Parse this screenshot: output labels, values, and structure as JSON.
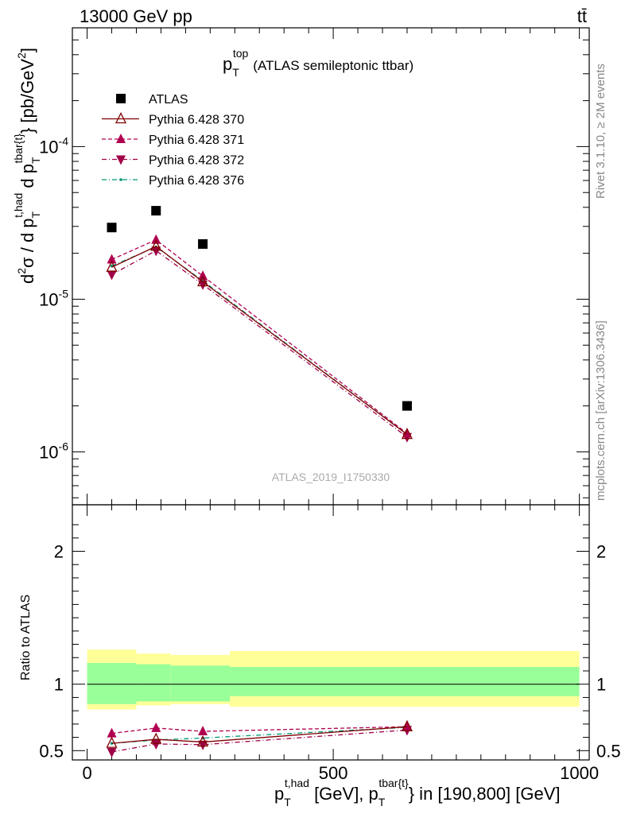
{
  "header": {
    "left": "13000 GeV pp",
    "right": "tt̄"
  },
  "side_texts": {
    "rivet": "Rivet 3.1.10, ≥ 2M events",
    "mcplots": "mcplots.cern.ch [arXiv:1306.3436]"
  },
  "watermark": "ATLAS_2019_I1750330",
  "colors": {
    "data": "#000000",
    "p370": "#7f0000",
    "p371": "#b00050",
    "p372": "#a00048",
    "p376": "#009977",
    "band_inner": "#99ff99",
    "band_outer": "#ffff99"
  },
  "chart_data": [
    {
      "type": "scatter",
      "title_main": "p",
      "title_sub": "T",
      "title_sup": "top",
      "title_rest": "(ATLAS semileptonic ttbar)",
      "ylabel": "d²σ / d p_T^{t,had} d p_T^{tbar{t}} [pb/GeV²]",
      "ylabel_parts": {
        "a": "d",
        "a_sup": "2",
        "b": "σ / d p",
        "b_sub": "T",
        "b_sup": "t,had",
        "c": " d p",
        "c_sub": "T",
        "c_sup": "tbar{t}",
        "d": "} [pb/GeV",
        "d_sup": "2",
        "e": "]"
      },
      "y_scale": "log",
      "ylim": [
        4.5e-07,
        0.0006
      ],
      "xlim": [
        -30,
        1020
      ],
      "y_tick_labels": [
        {
          "base": "10",
          "exp": "-6",
          "value": 1e-06
        },
        {
          "base": "10",
          "exp": "-5",
          "value": 1e-05
        },
        {
          "base": "10",
          "exp": "-4",
          "value": 0.0001
        }
      ],
      "legend": {
        "placement": "top-left",
        "entries": [
          "ATLAS",
          "Pythia 6.428 370",
          "Pythia 6.428 371",
          "Pythia 6.428 372",
          "Pythia 6.428 376"
        ]
      },
      "x": [
        50,
        140,
        235,
        650
      ],
      "series": [
        {
          "name": "ATLAS",
          "values": [
            2.95e-05,
            3.8e-05,
            2.3e-05,
            2e-06
          ]
        },
        {
          "name": "Pythia 6.428 370",
          "values": [
            1.62e-05,
            2.22e-05,
            1.3e-05,
            1.3e-06
          ]
        },
        {
          "name": "Pythia 6.428 371",
          "values": [
            1.82e-05,
            2.45e-05,
            1.42e-05,
            1.32e-06
          ]
        },
        {
          "name": "Pythia 6.428 372",
          "values": [
            1.45e-05,
            2.08e-05,
            1.25e-05,
            1.25e-06
          ]
        },
        {
          "name": "Pythia 6.428 376",
          "values": [
            1.65e-05,
            2.2e-05,
            1.32e-05,
            1.3e-06
          ]
        }
      ]
    },
    {
      "type": "line",
      "ylabel": "Ratio to ATLAS",
      "xlabel": "p_T^{t,had} [GeV], p_T^{tbar{t}} in [190,800] [GeV]",
      "xlabel_parts": {
        "a": "p",
        "a_sub": "T",
        "a_sup": "t,had",
        "b": " [GeV], p",
        "b_sub": "T",
        "b_sup": "tbar{t}",
        "c": "} in [190,800] [GeV]"
      },
      "xlim": [
        -30,
        1020
      ],
      "ylim": [
        0.43,
        2.35
      ],
      "x_tick_labels": [
        "0",
        "500",
        "1000"
      ],
      "y_tick_labels": [
        "0.5",
        "1",
        "2"
      ],
      "bands": [
        {
          "x0": 0,
          "x1": 100,
          "inner": [
            0.85,
            1.16
          ],
          "outer": [
            0.81,
            1.26
          ]
        },
        {
          "x0": 100,
          "x1": 170,
          "inner": [
            0.87,
            1.15
          ],
          "outer": [
            0.84,
            1.23
          ]
        },
        {
          "x0": 170,
          "x1": 290,
          "inner": [
            0.87,
            1.14
          ],
          "outer": [
            0.85,
            1.22
          ]
        },
        {
          "x0": 290,
          "x1": 1000,
          "inner": [
            0.91,
            1.13
          ],
          "outer": [
            0.83,
            1.25
          ]
        }
      ],
      "x": [
        50,
        140,
        235,
        650
      ],
      "series": [
        {
          "name": "Pythia 6.428 370",
          "values": [
            0.555,
            0.585,
            0.565,
            0.68
          ]
        },
        {
          "name": "Pythia 6.428 371",
          "values": [
            0.63,
            0.67,
            0.645,
            0.68
          ]
        },
        {
          "name": "Pythia 6.428 372",
          "values": [
            0.49,
            0.55,
            0.545,
            0.655
          ]
        },
        {
          "name": "Pythia 6.428 376",
          "values": [
            0.555,
            0.58,
            0.595,
            0.675
          ]
        }
      ]
    }
  ]
}
